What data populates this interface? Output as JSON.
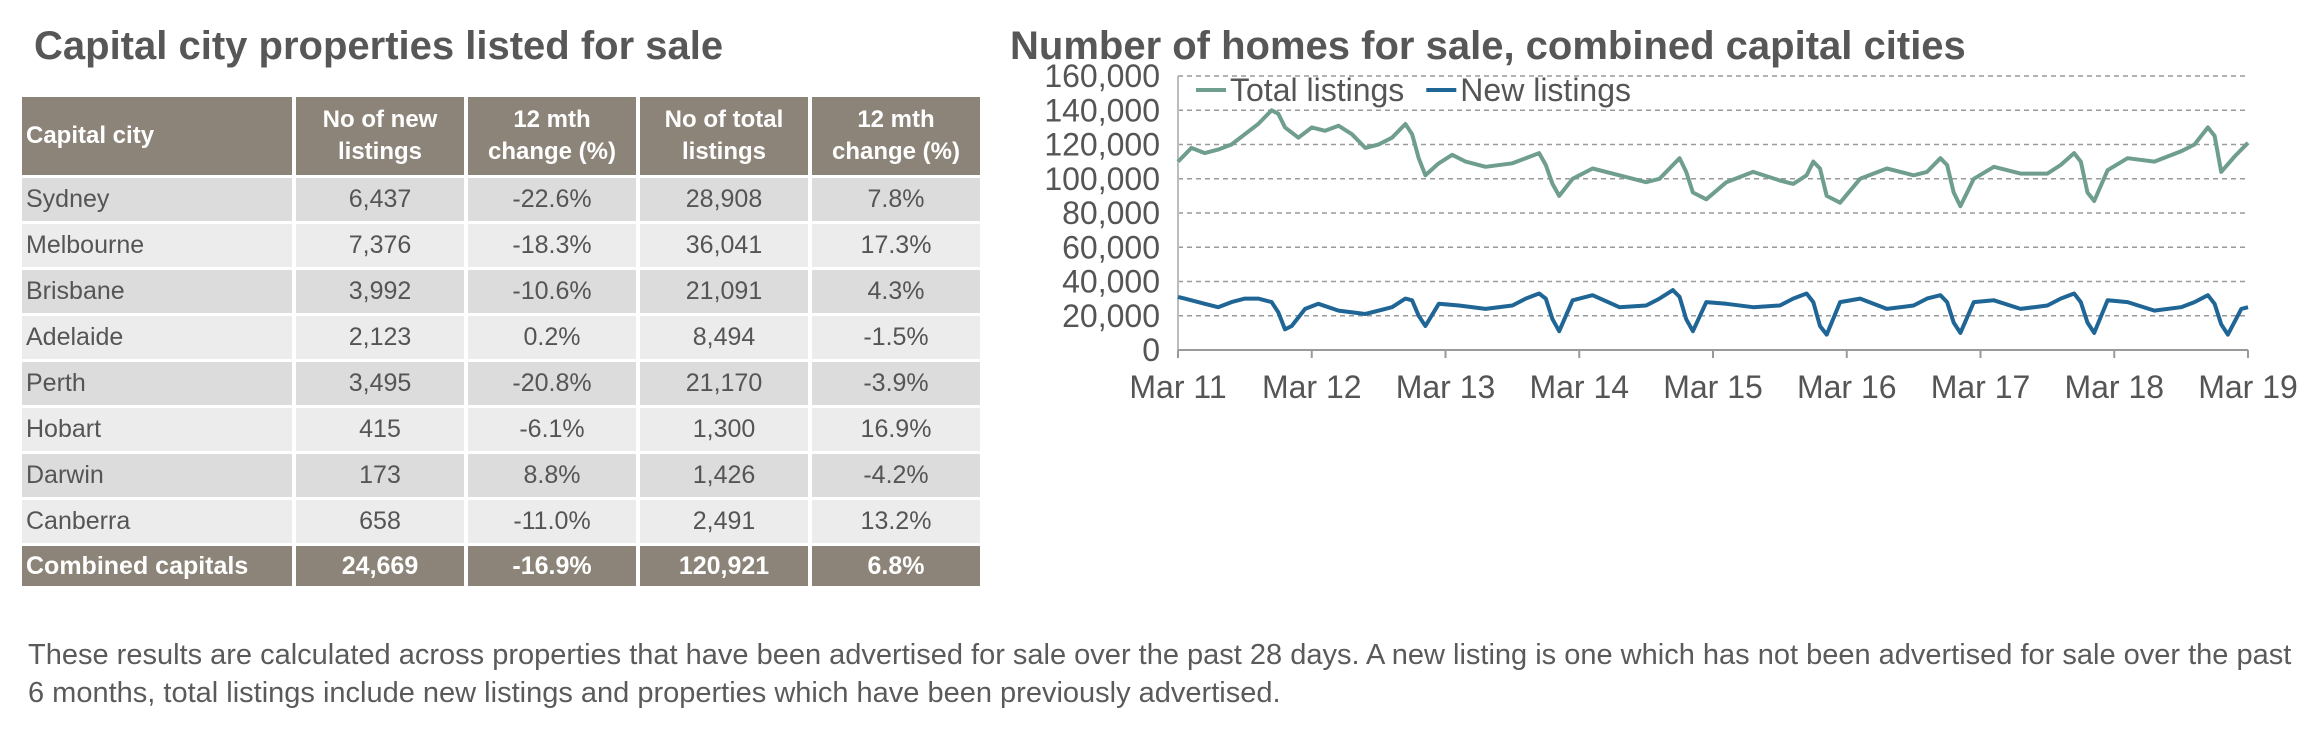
{
  "left_title": "Capital city properties listed for sale",
  "right_title": "Number of homes for sale, combined capital cities",
  "table": {
    "headers": {
      "city": "Capital city",
      "new_line1": "No of new",
      "new_line2": "listings",
      "newchg_line1": "12 mth",
      "newchg_line2": "change (%)",
      "total_line1": "No of total",
      "total_line2": "listings",
      "totchg_line1": "12 mth",
      "totchg_line2": "change (%)"
    },
    "rows": [
      {
        "city": "Sydney",
        "new": "6,437",
        "new_chg": "-22.6%",
        "total": "28,908",
        "total_chg": "7.8%"
      },
      {
        "city": "Melbourne",
        "new": "7,376",
        "new_chg": "-18.3%",
        "total": "36,041",
        "total_chg": "17.3%"
      },
      {
        "city": "Brisbane",
        "new": "3,992",
        "new_chg": "-10.6%",
        "total": "21,091",
        "total_chg": "4.3%"
      },
      {
        "city": "Adelaide",
        "new": "2,123",
        "new_chg": "0.2%",
        "total": "8,494",
        "total_chg": "-1.5%"
      },
      {
        "city": "Perth",
        "new": "3,495",
        "new_chg": "-20.8%",
        "total": "21,170",
        "total_chg": "-3.9%"
      },
      {
        "city": "Hobart",
        "new": "415",
        "new_chg": "-6.1%",
        "total": "1,300",
        "total_chg": "16.9%"
      },
      {
        "city": "Darwin",
        "new": "173",
        "new_chg": "8.8%",
        "total": "1,426",
        "total_chg": "-4.2%"
      },
      {
        "city": "Canberra",
        "new": "658",
        "new_chg": "-11.0%",
        "total": "2,491",
        "total_chg": "13.2%"
      }
    ],
    "footer": {
      "city": "Combined capitals",
      "new": "24,669",
      "new_chg": "-16.9%",
      "total": "120,921",
      "total_chg": "6.8%"
    }
  },
  "chart_data": {
    "type": "line",
    "title": "Number of homes for sale, combined capital cities",
    "xlabel": "",
    "ylabel": "",
    "ylim": [
      0,
      160000
    ],
    "xlim": [
      2011.0,
      2019.0
    ],
    "yticks": [
      0,
      20000,
      40000,
      60000,
      80000,
      100000,
      120000,
      140000,
      160000
    ],
    "ytick_labels": [
      "0",
      "20,000",
      "40,000",
      "60,000",
      "80,000",
      "100,000",
      "120,000",
      "140,000",
      "160,000"
    ],
    "xticks": [
      2011,
      2012,
      2013,
      2014,
      2015,
      2016,
      2017,
      2018,
      2019
    ],
    "xtick_labels": [
      "Mar 11",
      "Mar 12",
      "Mar 13",
      "Mar 14",
      "Mar 15",
      "Mar 16",
      "Mar 17",
      "Mar 18",
      "Mar 19"
    ],
    "grid": "horizontal-dashed",
    "legend": "top-left",
    "series": [
      {
        "name": "Total listings",
        "color": "#6f9e8e",
        "x": [
          2011.0,
          2011.05,
          2011.1,
          2011.2,
          2011.3,
          2011.4,
          2011.5,
          2011.6,
          2011.7,
          2011.75,
          2011.8,
          2011.9,
          2012.0,
          2012.1,
          2012.2,
          2012.3,
          2012.4,
          2012.5,
          2012.6,
          2012.7,
          2012.75,
          2012.8,
          2012.85,
          2012.95,
          2013.05,
          2013.15,
          2013.3,
          2013.5,
          2013.6,
          2013.7,
          2013.75,
          2013.8,
          2013.85,
          2013.95,
          2014.1,
          2014.3,
          2014.5,
          2014.6,
          2014.7,
          2014.75,
          2014.8,
          2014.85,
          2014.95,
          2015.1,
          2015.3,
          2015.5,
          2015.6,
          2015.7,
          2015.75,
          2015.8,
          2015.85,
          2015.95,
          2016.1,
          2016.3,
          2016.5,
          2016.6,
          2016.7,
          2016.75,
          2016.8,
          2016.85,
          2016.95,
          2017.1,
          2017.3,
          2017.5,
          2017.6,
          2017.7,
          2017.75,
          2017.8,
          2017.85,
          2017.95,
          2018.1,
          2018.3,
          2018.5,
          2018.6,
          2018.7,
          2018.75,
          2018.8,
          2018.9,
          2019.0
        ],
        "y": [
          110000,
          114000,
          118000,
          115000,
          117000,
          120000,
          126000,
          132000,
          140000,
          138000,
          130000,
          124000,
          130000,
          128000,
          131000,
          126000,
          118000,
          120000,
          124000,
          132000,
          126000,
          112000,
          102000,
          109000,
          114000,
          110000,
          107000,
          109000,
          112000,
          115000,
          108000,
          97000,
          90000,
          100000,
          106000,
          102000,
          98000,
          100000,
          108000,
          112000,
          104000,
          92000,
          88000,
          98000,
          104000,
          99000,
          97000,
          102000,
          110000,
          106000,
          90000,
          86000,
          100000,
          106000,
          102000,
          104000,
          112000,
          108000,
          92000,
          84000,
          100000,
          107000,
          103000,
          103000,
          108000,
          115000,
          110000,
          92000,
          87000,
          105000,
          112000,
          110000,
          116000,
          120000,
          130000,
          125000,
          104000,
          113000,
          121000
        ]
      },
      {
        "name": "New listings",
        "color": "#1f6595",
        "x": [
          2011.0,
          2011.05,
          2011.1,
          2011.2,
          2011.3,
          2011.4,
          2011.5,
          2011.6,
          2011.7,
          2011.75,
          2011.8,
          2011.85,
          2011.95,
          2012.05,
          2012.2,
          2012.4,
          2012.6,
          2012.7,
          2012.75,
          2012.8,
          2012.85,
          2012.95,
          2013.1,
          2013.3,
          2013.5,
          2013.6,
          2013.7,
          2013.75,
          2013.8,
          2013.85,
          2013.95,
          2014.1,
          2014.3,
          2014.5,
          2014.6,
          2014.7,
          2014.75,
          2014.8,
          2014.85,
          2014.95,
          2015.1,
          2015.3,
          2015.5,
          2015.6,
          2015.7,
          2015.75,
          2015.8,
          2015.85,
          2015.95,
          2016.1,
          2016.3,
          2016.5,
          2016.6,
          2016.7,
          2016.75,
          2016.8,
          2016.85,
          2016.95,
          2017.1,
          2017.3,
          2017.5,
          2017.6,
          2017.7,
          2017.75,
          2017.8,
          2017.85,
          2017.95,
          2018.1,
          2018.3,
          2018.5,
          2018.6,
          2018.7,
          2018.75,
          2018.8,
          2018.85,
          2018.95,
          2019.0
        ],
        "y": [
          31000,
          30000,
          29000,
          27000,
          25000,
          28000,
          30000,
          30000,
          28000,
          22000,
          12000,
          14000,
          24000,
          27000,
          23000,
          21000,
          25000,
          30000,
          29000,
          20000,
          14000,
          27000,
          26000,
          24000,
          26000,
          30000,
          33000,
          30000,
          18000,
          11000,
          29000,
          32000,
          25000,
          26000,
          30000,
          35000,
          31000,
          18000,
          11000,
          28000,
          27000,
          25000,
          26000,
          30000,
          33000,
          28000,
          14000,
          9000,
          28000,
          30000,
          24000,
          26000,
          30000,
          32000,
          28000,
          16000,
          10000,
          28000,
          29000,
          24000,
          26000,
          30000,
          33000,
          28000,
          16000,
          10000,
          29000,
          28000,
          23000,
          25000,
          28000,
          32000,
          27000,
          15000,
          9000,
          24000,
          25000
        ]
      }
    ]
  },
  "footnote": "These results are calculated across properties that have been advertised for sale over the past 28 days.  A new listing is one which has not been advertised for sale over the past 6 months, total listings include new listings and properties which have been previously advertised."
}
